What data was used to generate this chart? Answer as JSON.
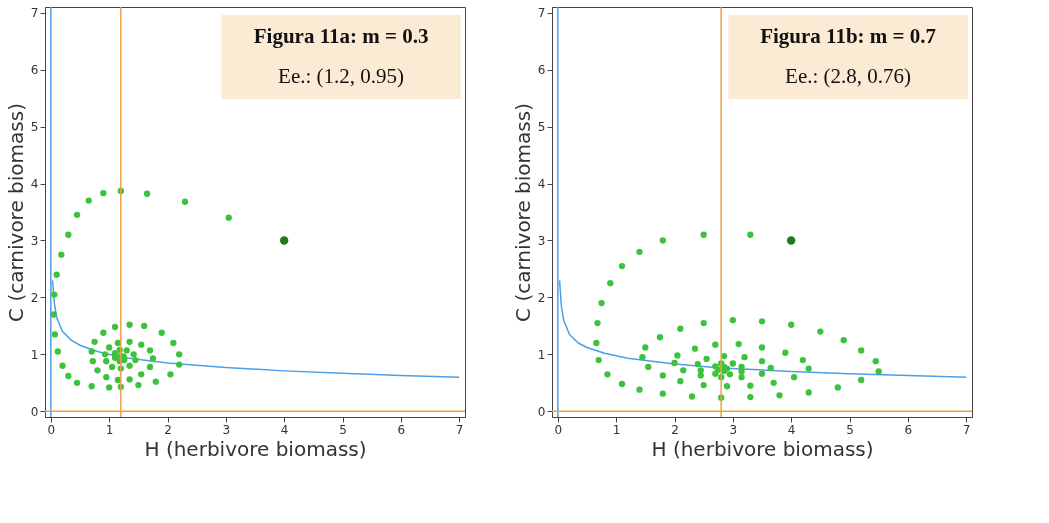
{
  "chart_data": [
    {
      "type": "scatter",
      "xlabel": "H (herbivore biomass)",
      "ylabel": "C (carnivore biomass)",
      "xlim": [
        -0.1,
        7.1
      ],
      "ylim": [
        -0.1,
        7.1
      ],
      "xticks": [
        0,
        1,
        2,
        3,
        4,
        5,
        6,
        7
      ],
      "yticks": [
        0,
        1,
        2,
        3,
        4,
        5,
        6,
        7
      ],
      "grid": false,
      "annotations": [
        "Figura 11a: m = 0.3",
        "Ee.: (1.2, 0.95)"
      ],
      "legend": false,
      "ref_lines": [
        {
          "axis": "x",
          "value": 0,
          "color": "#4a9fe8"
        },
        {
          "axis": "x",
          "value": 1.2,
          "color": "#f0a040"
        },
        {
          "axis": "y",
          "value": 0,
          "color": "#f0a040"
        }
      ],
      "series": [
        {
          "type": "line",
          "color": "#4a9fe8",
          "marker": "none",
          "line_style": "solid",
          "x": [
            0.03,
            0.06,
            0.1,
            0.2,
            0.35,
            0.5,
            0.8,
            1.2,
            2,
            3,
            4,
            5,
            6,
            7
          ],
          "values": [
            2.3,
            1.9,
            1.65,
            1.4,
            1.25,
            1.16,
            1.05,
            0.95,
            0.85,
            0.77,
            0.71,
            0.67,
            0.63,
            0.6
          ]
        },
        {
          "type": "scatter",
          "color": "#3cc23c",
          "marker": "circle",
          "x": [
            3.05,
            2.3,
            1.65,
            1.2,
            0.9,
            0.65,
            0.45,
            0.3,
            0.18,
            0.1,
            0.06,
            0.05,
            0.07,
            0.12,
            0.2,
            0.3,
            0.45,
            0.7,
            1.0,
            1.2,
            1.5,
            1.8,
            2.05,
            2.2,
            2.2,
            2.1,
            1.9,
            1.6,
            1.35,
            1.1,
            0.9,
            0.75,
            0.7,
            0.72,
            0.8,
            0.95,
            1.15,
            1.35,
            1.55,
            1.7,
            1.75,
            1.7,
            1.55,
            1.35,
            1.15,
            1.0,
            0.93,
            0.95,
            1.05,
            1.2,
            1.35,
            1.45,
            1.42,
            1.3,
            1.18,
            1.1,
            1.1,
            1.18,
            1.26,
            1.25,
            1.2
          ],
          "values": [
            3.4,
            3.68,
            3.82,
            3.87,
            3.83,
            3.7,
            3.45,
            3.1,
            2.75,
            2.4,
            2.05,
            1.7,
            1.35,
            1.05,
            0.8,
            0.62,
            0.5,
            0.44,
            0.42,
            0.43,
            0.46,
            0.52,
            0.65,
            0.82,
            1.0,
            1.2,
            1.38,
            1.5,
            1.52,
            1.48,
            1.38,
            1.22,
            1.05,
            0.88,
            0.72,
            0.6,
            0.55,
            0.56,
            0.65,
            0.78,
            0.93,
            1.07,
            1.17,
            1.22,
            1.2,
            1.12,
            1.0,
            0.88,
            0.78,
            0.75,
            0.8,
            0.9,
            1.0,
            1.07,
            1.08,
            1.02,
            0.94,
            0.88,
            0.9,
            0.96,
            0.97
          ]
        },
        {
          "type": "scatter",
          "color": "#1e7a1e",
          "x": [
            4
          ],
          "values": [
            3
          ]
        }
      ]
    },
    {
      "type": "scatter",
      "xlabel": "H (herbivore biomass)",
      "ylabel": "C (carnivore biomass)",
      "xlim": [
        -0.1,
        7.1
      ],
      "ylim": [
        -0.1,
        7.1
      ],
      "xticks": [
        0,
        1,
        2,
        3,
        4,
        5,
        6,
        7
      ],
      "yticks": [
        0,
        1,
        2,
        3,
        4,
        5,
        6,
        7
      ],
      "grid": false,
      "annotations": [
        "Figura 11b: m = 0.7",
        "Ee.: (2.8, 0.76)"
      ],
      "legend": false,
      "ref_lines": [
        {
          "axis": "x",
          "value": 0,
          "color": "#4a9fe8"
        },
        {
          "axis": "x",
          "value": 2.8,
          "color": "#f0a040"
        },
        {
          "axis": "y",
          "value": 0,
          "color": "#f0a040"
        }
      ],
      "series": [
        {
          "type": "line",
          "color": "#4a9fe8",
          "marker": "none",
          "line_style": "solid",
          "x": [
            0.03,
            0.06,
            0.1,
            0.2,
            0.35,
            0.5,
            0.8,
            1.2,
            2,
            2.8,
            4,
            5,
            6,
            7
          ],
          "values": [
            2.3,
            1.85,
            1.6,
            1.35,
            1.2,
            1.12,
            1.02,
            0.93,
            0.83,
            0.76,
            0.7,
            0.66,
            0.63,
            0.6
          ]
        },
        {
          "type": "scatter",
          "color": "#3cc23c",
          "marker": "circle",
          "x": [
            3.3,
            2.5,
            1.8,
            1.4,
            1.1,
            0.9,
            0.75,
            0.68,
            0.66,
            0.7,
            0.85,
            1.1,
            1.4,
            1.8,
            2.3,
            2.8,
            3.3,
            3.8,
            4.3,
            4.8,
            5.2,
            5.5,
            5.45,
            5.2,
            4.9,
            4.5,
            4.0,
            3.5,
            3.0,
            2.5,
            2.1,
            1.75,
            1.5,
            1.45,
            1.55,
            1.8,
            2.1,
            2.5,
            2.9,
            3.3,
            3.7,
            4.05,
            4.3,
            4.2,
            3.9,
            3.5,
            3.1,
            2.7,
            2.35,
            2.05,
            2.0,
            2.15,
            2.45,
            2.8,
            3.15,
            3.5,
            3.65,
            3.5,
            3.2,
            2.85,
            2.55,
            2.4,
            2.45,
            2.7,
            2.95,
            3.15,
            3.15,
            3.0,
            2.8,
            2.7,
            2.75,
            2.85,
            2.9,
            2.85
          ],
          "values": [
            3.1,
            3.1,
            3.0,
            2.8,
            2.55,
            2.25,
            1.9,
            1.55,
            1.2,
            0.9,
            0.65,
            0.48,
            0.38,
            0.31,
            0.26,
            0.24,
            0.25,
            0.28,
            0.33,
            0.42,
            0.55,
            0.7,
            0.88,
            1.07,
            1.25,
            1.4,
            1.52,
            1.58,
            1.6,
            1.55,
            1.45,
            1.3,
            1.12,
            0.95,
            0.78,
            0.63,
            0.53,
            0.46,
            0.44,
            0.45,
            0.5,
            0.6,
            0.75,
            0.9,
            1.03,
            1.12,
            1.18,
            1.17,
            1.1,
            0.98,
            0.85,
            0.72,
            0.63,
            0.6,
            0.6,
            0.66,
            0.76,
            0.88,
            0.95,
            0.97,
            0.92,
            0.83,
            0.72,
            0.66,
            0.65,
            0.7,
            0.78,
            0.84,
            0.84,
            0.79,
            0.73,
            0.71,
            0.75,
            0.78
          ]
        },
        {
          "type": "scatter",
          "color": "#1e7a1e",
          "x": [
            4
          ],
          "values": [
            3
          ]
        }
      ]
    }
  ]
}
